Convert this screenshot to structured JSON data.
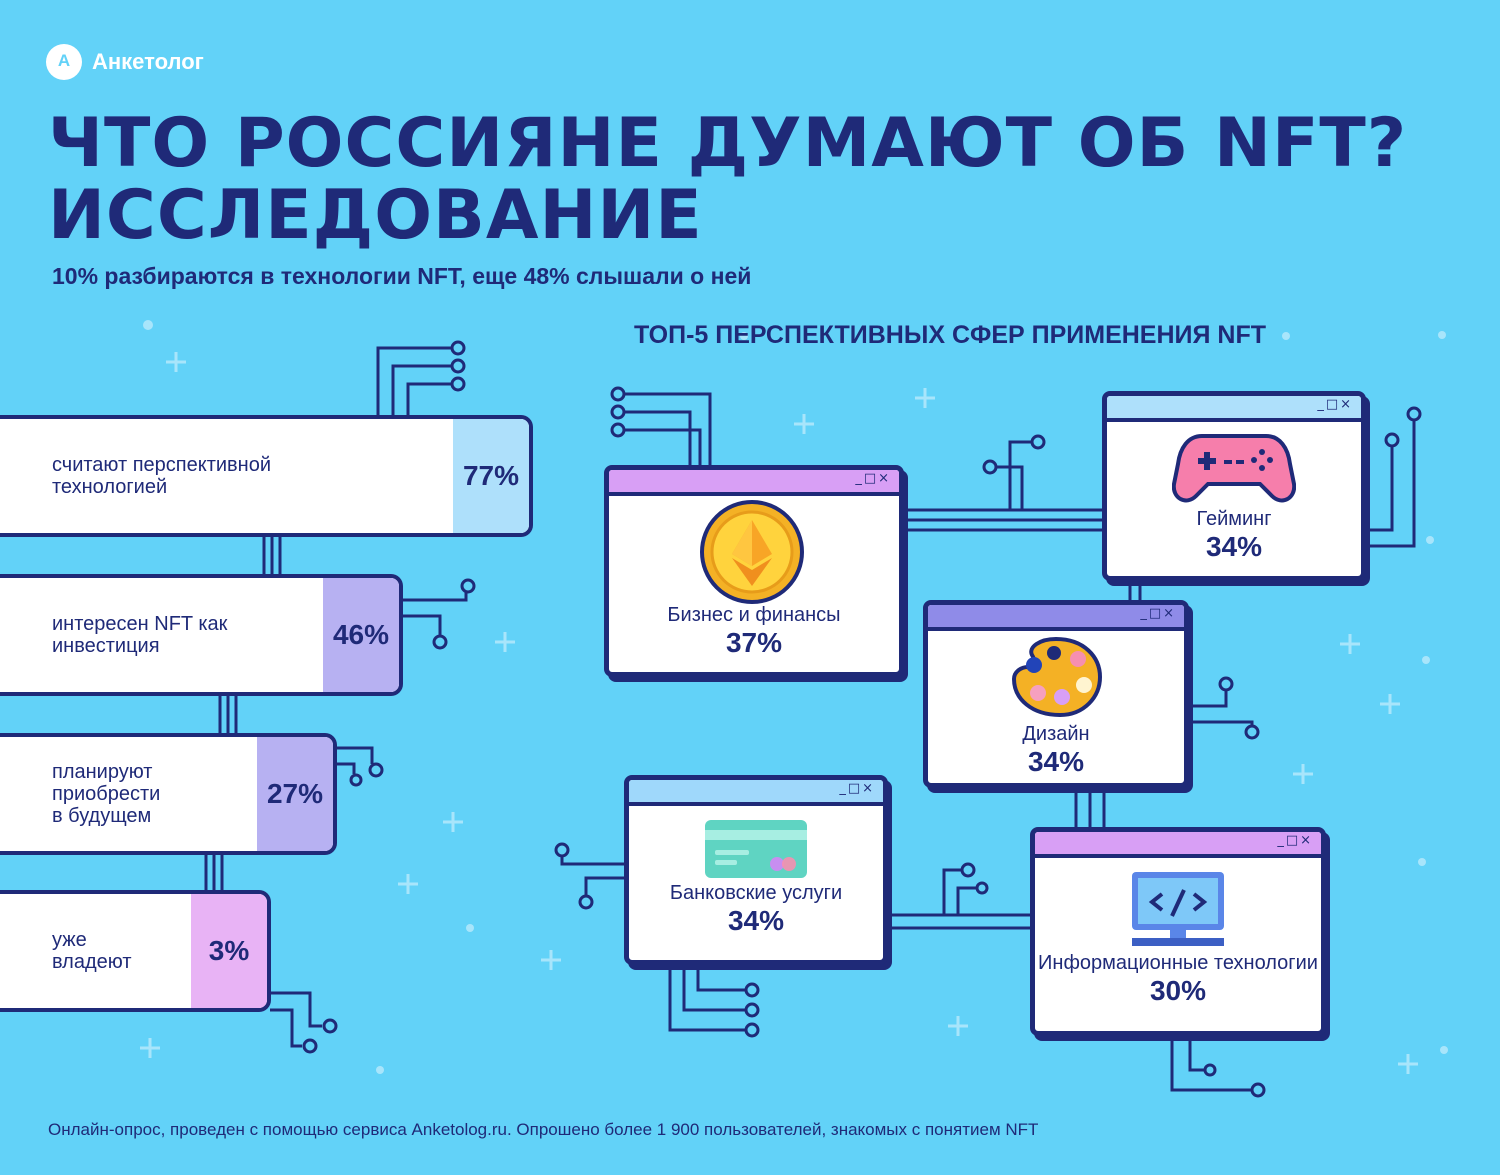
{
  "brand": {
    "name": "Анкетолог"
  },
  "title": {
    "line1": "ЧТО РОССИЯНЕ ДУМАЮТ ОБ NFT?",
    "line2": "ИССЛЕДОВАНИЕ"
  },
  "subtitle": "10% разбираются в технологии NFT, еще 48% слышали о ней",
  "attitudes": [
    {
      "label_lines": [
        "считают перспективной",
        "технологией"
      ],
      "value": "77%",
      "color": "#aee0fb"
    },
    {
      "label_lines": [
        "интересен NFT как",
        "инвестиция"
      ],
      "value": "46%",
      "color": "#b7b1f2"
    },
    {
      "label_lines": [
        "планируют",
        "приобрести",
        "в будущем"
      ],
      "value": "27%",
      "color": "#b7b1f2"
    },
    {
      "label_lines": [
        "уже",
        "владеют"
      ],
      "value": "3%",
      "color": "#e8b3f5"
    }
  ],
  "top5": {
    "title": "ТОП-5 ПЕРСПЕКТИВНЫХ СФЕР ПРИМЕНЕНИЯ NFT",
    "window_controls": "_□×",
    "items": [
      {
        "label": "Бизнес и финансы",
        "value": "37%",
        "icon": "ethereum-coin-icon",
        "titlebar_color": "#d89ff5"
      },
      {
        "label": "Гейминг",
        "value": "34%",
        "icon": "gamepad-icon",
        "titlebar_color": "#aee0fb"
      },
      {
        "label": "Дизайн",
        "value": "34%",
        "icon": "palette-icon",
        "titlebar_color": "#8f8be8"
      },
      {
        "label": "Банковские услуги",
        "value": "34%",
        "icon": "bank-card-icon",
        "titlebar_color": "#9fd8fb"
      },
      {
        "label": "Информационные технологии",
        "value": "30%",
        "icon": "code-monitor-icon",
        "titlebar_color": "#d89ff5"
      }
    ]
  },
  "footer": "Онлайн-опрос, проведен с помощью сервиса Anketolog.ru. Опрошено более 1 900 пользователей, знакомых с понятием NFT",
  "colors": {
    "background": "#62d2f8",
    "navy": "#1f2a78",
    "white": "#ffffff"
  }
}
